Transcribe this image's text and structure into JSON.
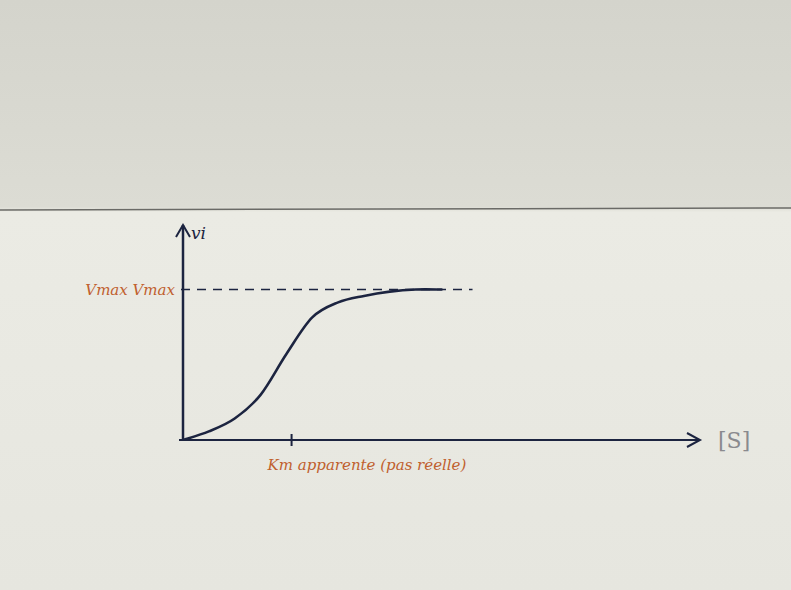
{
  "chart_data": {
    "type": "line",
    "y_label": "vi",
    "x_label": "[S]",
    "x": [
      0,
      5,
      10,
      15,
      20,
      25,
      30,
      35,
      40,
      45,
      50
    ],
    "values": [
      0,
      4,
      10,
      21,
      40,
      57,
      64,
      67,
      69,
      70,
      70
    ],
    "color": "#1c2440",
    "xlim": [
      0,
      100
    ],
    "ylim": [
      0,
      100
    ],
    "xticks": [
      {
        "value": 21,
        "label": "Km apparente (pas réelle)"
      }
    ],
    "yticks": [
      {
        "value": 70,
        "label": "Vmax Vmax"
      }
    ],
    "grid": true
  }
}
